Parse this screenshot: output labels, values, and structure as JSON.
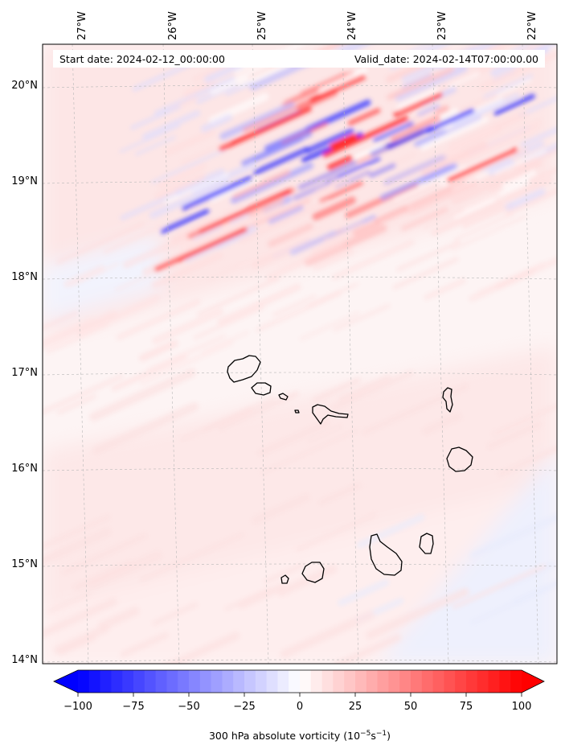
{
  "map": {
    "title_left": "Start date: 2024-02-12_00:00:00",
    "title_right": "Valid_date: 2024-02-14T07:00:00.00",
    "lon_labels": [
      "27°W",
      "26°W",
      "25°W",
      "24°W",
      "23°W",
      "22°W"
    ],
    "lat_labels": [
      "20°N",
      "19°N",
      "18°N",
      "17°N",
      "16°N",
      "15°N",
      "14°N"
    ],
    "extent": {
      "lon_min": -27.35,
      "lon_max": -21.75,
      "lat_min": 13.95,
      "lat_max": 20.42
    },
    "region": "Cape Verde Islands",
    "field": "300 hPa absolute vorticity"
  },
  "colorbar": {
    "ticks": [
      "−100",
      "−75",
      "−50",
      "−25",
      "0",
      "25",
      "50",
      "75",
      "100"
    ],
    "label": "300 hPa absolute vorticity (10",
    "label_exp": "−5",
    "label_unit": "s",
    "label_exp2": "−1",
    "label_end": ")",
    "min": -100,
    "max": 100,
    "step": 5,
    "neg_color": "#0000ff",
    "pos_color": "#ff0000"
  },
  "colors": {
    "background_positive_light": "#fde3e3",
    "background_neutral": "#fdf6f6",
    "background_negative_light": "#eef0fd"
  }
}
